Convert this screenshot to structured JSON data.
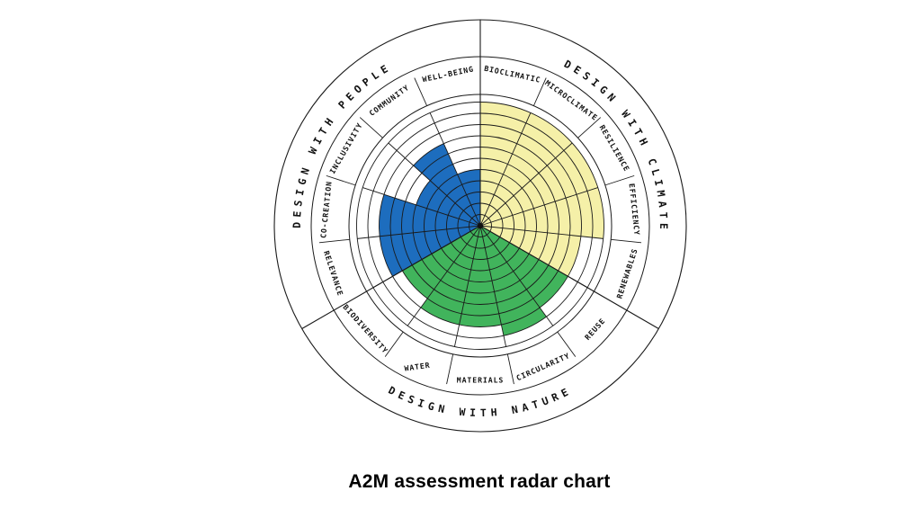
{
  "caption": "A2M assessment radar chart",
  "chart_data": {
    "type": "radar",
    "title": "A2M assessment radar chart",
    "ring_count": 11,
    "max_value": 11,
    "sector_angle_deg": 24,
    "grid": true,
    "legend": "none",
    "grid_color": "#1a1a1a",
    "groups": [
      {
        "label": "DESIGN WITH CLIMATE",
        "color": "#F5F0A8",
        "start_angle_deg": 0,
        "sectors": [
          {
            "label": "BIOCLIMATIC",
            "value": 11
          },
          {
            "label": "MICROCLIMATE",
            "value": 11
          },
          {
            "label": "RESILIENCE",
            "value": 11
          },
          {
            "label": "EFFICIENCY",
            "value": 11
          },
          {
            "label": "RENEWABLES",
            "value": 9
          }
        ]
      },
      {
        "label": "DESIGN WITH NATURE",
        "color": "#41B45C",
        "start_angle_deg": 120,
        "sectors": [
          {
            "label": "REUSE",
            "value": 9
          },
          {
            "label": "CIRCULARITY",
            "value": 10
          },
          {
            "label": "MATERIALS",
            "value": 9
          },
          {
            "label": "WATER",
            "value": 9
          },
          {
            "label": "BIODIVERSITY",
            "value": 8
          }
        ]
      },
      {
        "label": "DESIGN WITH PEOPLE",
        "color": "#1D6DBE",
        "start_angle_deg": 240,
        "sectors": [
          {
            "label": "RELEVANCE",
            "value": 9
          },
          {
            "label": "CO-CREATION",
            "value": 9
          },
          {
            "label": "INCLUSIVITY",
            "value": 6
          },
          {
            "label": "COMMUNITY",
            "value": 8
          },
          {
            "label": "WELL-BEING",
            "value": 5
          }
        ]
      }
    ]
  }
}
